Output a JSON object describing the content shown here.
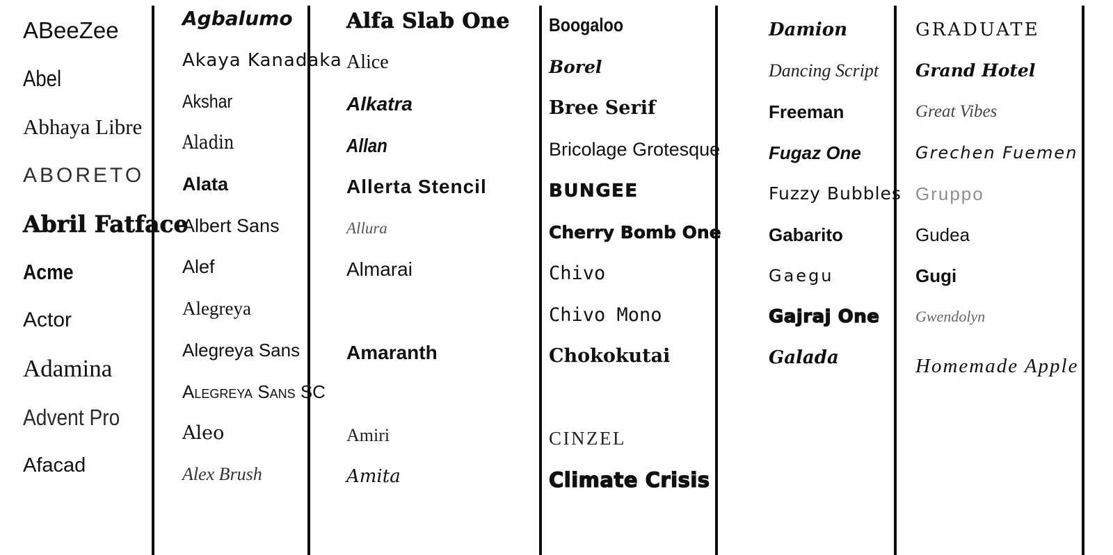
{
  "page": {
    "background": "#ffffff",
    "divider_color": "#0d0d0d",
    "text_color": "#111111",
    "description": "Alphabetical font specimen sheet; each name rendered in its own typeface"
  },
  "columns": [
    {
      "entries": [
        {
          "name": "ABeeZee",
          "style": "sans",
          "size": 33
        },
        {
          "name": "Abel",
          "style": "cond",
          "size": 32
        },
        {
          "name": "Abhaya Libre",
          "style": "serif",
          "size": 31
        },
        {
          "name": "ABORETO",
          "style": "caps-wide",
          "size": 30
        },
        {
          "name": "Abril Fatface",
          "style": "fat-serif",
          "size": 33
        },
        {
          "name": "Acme",
          "style": "cond-b",
          "size": 31
        },
        {
          "name": "Actor",
          "style": "sans",
          "size": 30
        },
        {
          "name": "Adamina",
          "style": "serif",
          "size": 35
        },
        {
          "name": "Advent Pro",
          "style": "cond-light",
          "size": 32
        },
        {
          "name": "Afacad",
          "style": "sans",
          "size": 29
        }
      ]
    },
    {
      "entries": [
        {
          "name": "Agbalumo",
          "style": "brush-b",
          "size": 28
        },
        {
          "name": "Akaya Kanadaka",
          "style": "hand",
          "size": 26
        },
        {
          "name": "Akshar",
          "style": "cond",
          "size": 27
        },
        {
          "name": "Aladin",
          "style": "serif-cond",
          "size": 27
        },
        {
          "name": "Alata",
          "style": "sans-med",
          "size": 27
        },
        {
          "name": "Albert Sans",
          "style": "sans",
          "size": 27
        },
        {
          "name": "Alef",
          "style": "sans",
          "size": 27
        },
        {
          "name": "Alegreya",
          "style": "serif",
          "size": 27
        },
        {
          "name": "Alegreya Sans",
          "style": "sans",
          "size": 26
        },
        {
          "name": "Alegreya Sans SC",
          "style": "smallcaps",
          "size": 26
        },
        {
          "name": "Aleo",
          "style": "slab",
          "size": 27
        },
        {
          "name": "Alex Brush",
          "style": "script",
          "size": 26,
          "color": "#333333"
        }
      ]
    },
    {
      "entries": [
        {
          "name": "Alfa Slab One",
          "style": "fat-slab",
          "size": 30
        },
        {
          "name": "Alice",
          "style": "serif",
          "size": 28
        },
        {
          "name": "Alkatra",
          "style": "sans-bi",
          "size": 28
        },
        {
          "name": "Allan",
          "style": "cond-bi",
          "size": 28
        },
        {
          "name": "Allerta Stencil",
          "style": "stencil",
          "size": 28
        },
        {
          "name": "Allura",
          "style": "script",
          "size": 23,
          "color": "#555555"
        },
        {
          "name": "Almarai",
          "style": "sans",
          "size": 28
        },
        {
          "name": "",
          "style": "blank"
        },
        {
          "name": "Amaranth",
          "style": "sans-med",
          "size": 28
        },
        {
          "name": "",
          "style": "blank"
        },
        {
          "name": "Amiri",
          "style": "serif",
          "size": 26,
          "color": "#222222"
        },
        {
          "name": "Amita",
          "style": "hand-serif",
          "size": 26
        }
      ]
    },
    {
      "entries": [
        {
          "name": "Boogaloo",
          "style": "cond-b",
          "size": 27
        },
        {
          "name": "Borel",
          "style": "script-b",
          "size": 25
        },
        {
          "name": "Bree Serif",
          "style": "slab-b",
          "size": 27
        },
        {
          "name": "Bricolage Grotesque",
          "style": "sans",
          "size": 27
        },
        {
          "name": "BUNGEE",
          "style": "heavy",
          "size": 26
        },
        {
          "name": "Cherry Bomb One",
          "style": "round-heavy",
          "size": 25
        },
        {
          "name": "Chivo",
          "style": "mono",
          "size": 27
        },
        {
          "name": "Chivo Mono",
          "style": "mono",
          "size": 27
        },
        {
          "name": "Chokokutai",
          "style": "slab-b",
          "size": 27
        },
        {
          "name": "",
          "style": "blank"
        },
        {
          "name": "CINZEL",
          "style": "serif-caps",
          "size": 27,
          "color": "#222222"
        },
        {
          "name": "Climate Crisis",
          "style": "ultra",
          "size": 29
        }
      ]
    },
    {
      "entries": [
        {
          "name": "Damion",
          "style": "script-b",
          "size": 26
        },
        {
          "name": "Dancing Script",
          "style": "script",
          "size": 26,
          "color": "#222222"
        },
        {
          "name": "Freeman",
          "style": "sans-b",
          "size": 26
        },
        {
          "name": "Fugaz One",
          "style": "sans-bi",
          "size": 26
        },
        {
          "name": "Fuzzy Bubbles",
          "style": "hand",
          "size": 25
        },
        {
          "name": "Gabarito",
          "style": "sans-med",
          "size": 26
        },
        {
          "name": "Gaegu",
          "style": "hand-wide",
          "size": 24
        },
        {
          "name": "Gajraj One",
          "style": "ultra",
          "size": 26
        },
        {
          "name": "Galada",
          "style": "script-b",
          "size": 26
        }
      ]
    },
    {
      "entries": [
        {
          "name": "GRADUATE",
          "style": "slab-caps",
          "size": 26
        },
        {
          "name": "Grand Hotel",
          "style": "script-b",
          "size": 25
        },
        {
          "name": "Great Vibes",
          "style": "script",
          "size": 25,
          "color": "#444444"
        },
        {
          "name": "Grechen Fuemen",
          "style": "hand-i",
          "size": 24
        },
        {
          "name": "Gruppo",
          "style": "wide",
          "size": 26,
          "color": "#8f8f8f"
        },
        {
          "name": "Gudea",
          "style": "sans",
          "size": 26
        },
        {
          "name": "Gugi",
          "style": "sans-b",
          "size": 26
        },
        {
          "name": "Gwendolyn",
          "style": "script",
          "size": 22,
          "color": "#666666"
        },
        {
          "name": "Homemade Apple",
          "style": "script-wide",
          "size": 29,
          "gap_before": 13
        }
      ]
    }
  ]
}
